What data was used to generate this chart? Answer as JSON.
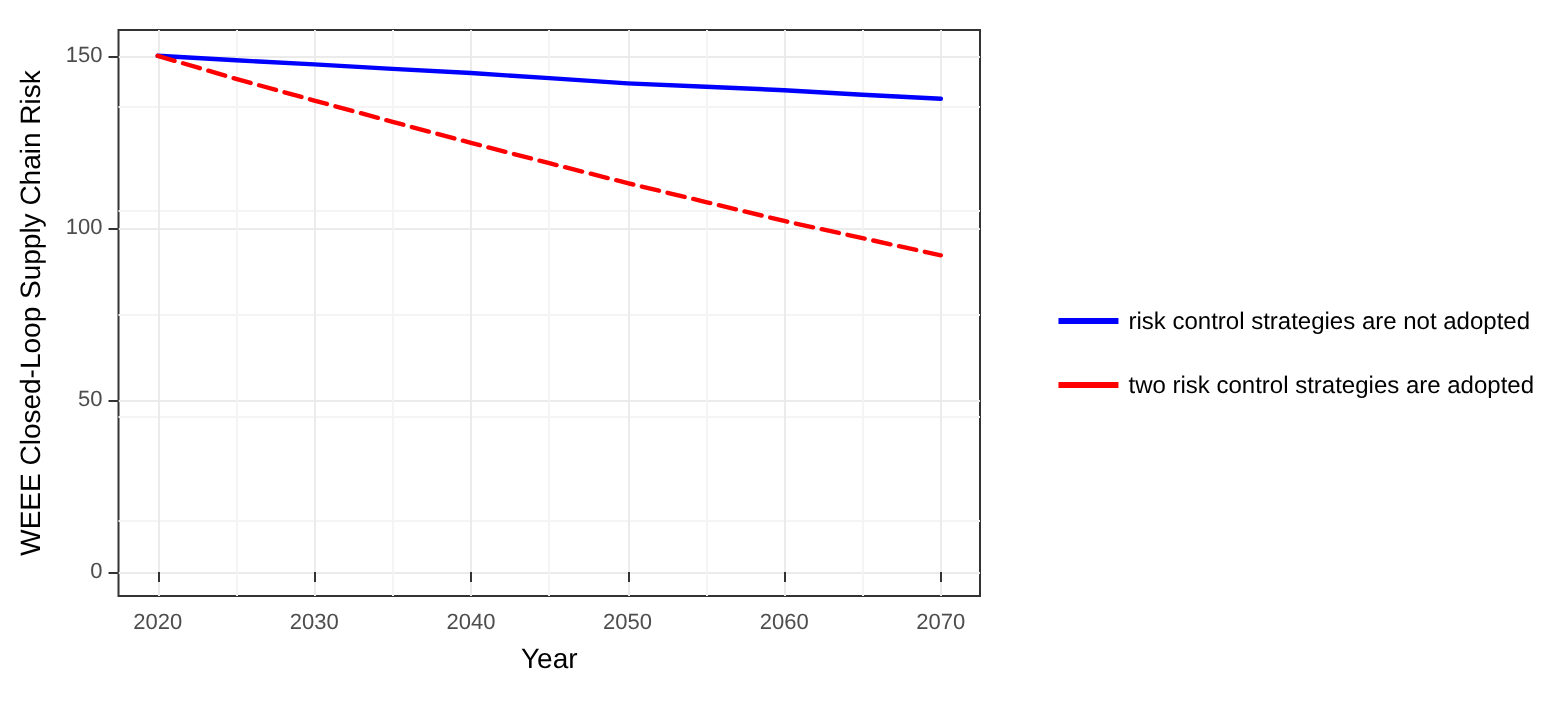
{
  "chart_data": {
    "type": "line",
    "xlabel": "Year",
    "ylabel": "WEEE Closed-Loop Supply Chain Risk",
    "x": [
      2020,
      2025,
      2030,
      2035,
      2040,
      2045,
      2050,
      2055,
      2060,
      2065,
      2070
    ],
    "series": [
      {
        "name": "risk control strategies are not adopted",
        "color": "#0000ff",
        "line_style": "solid",
        "values": [
          150,
          148.7,
          147.5,
          146.2,
          145,
          143.5,
          142,
          141,
          140,
          138.7,
          137.5
        ]
      },
      {
        "name": "two risk control strategies are adopted",
        "color": "#ff0000",
        "line_style": "dashed",
        "values": [
          150,
          143.3,
          137,
          130.8,
          124.7,
          118.8,
          113,
          107.5,
          102,
          97,
          92
        ]
      }
    ],
    "xlim": [
      2017.5,
      2072.5
    ],
    "xticks": [
      2020,
      2030,
      2040,
      2050,
      2060,
      2070
    ],
    "ylim": [
      -7,
      157.5
    ],
    "yticks": [
      0,
      50,
      100,
      150
    ],
    "grid": true,
    "legend": "right",
    "marker": "none"
  }
}
